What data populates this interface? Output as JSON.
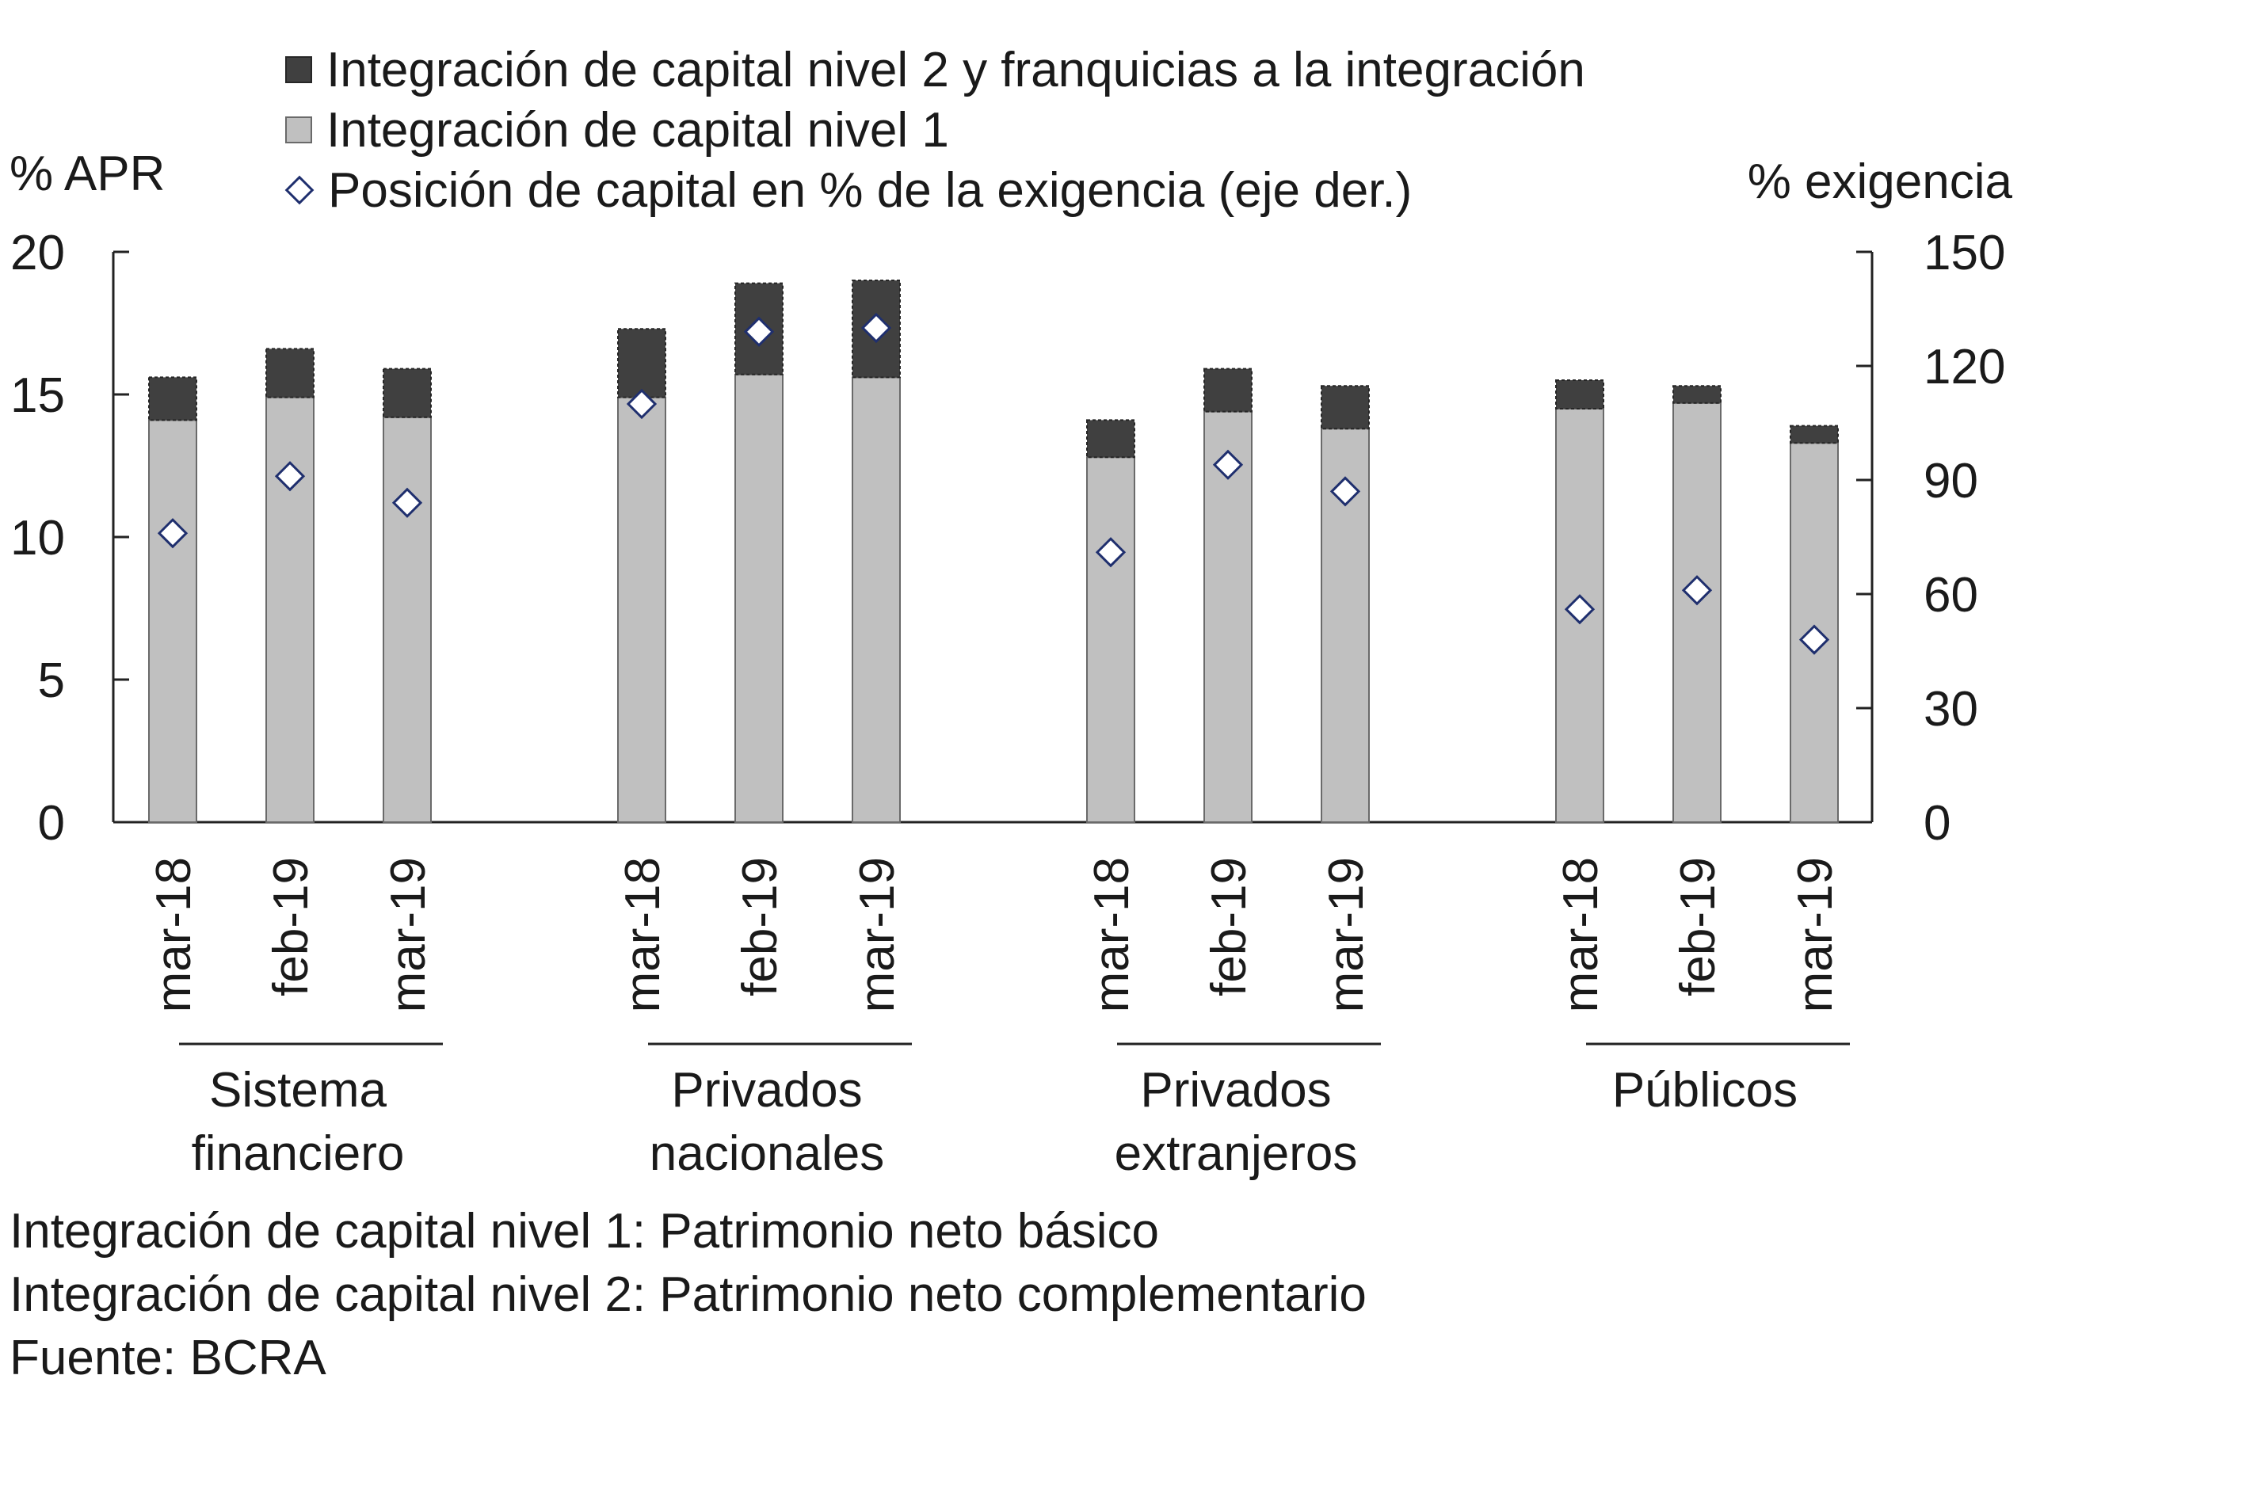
{
  "chart_data": {
    "type": "bar",
    "stacked": true,
    "y_left_label": "% APR",
    "y_right_label": "% exigencia",
    "y_left_range": [
      0,
      20
    ],
    "y_right_range": [
      0,
      150
    ],
    "y_left_ticks": [
      "0",
      "5",
      "10",
      "15",
      "20"
    ],
    "y_right_ticks": [
      "0",
      "30",
      "60",
      "90",
      "120",
      "150"
    ],
    "groups": [
      {
        "name": "Sistema financiero",
        "label_lines": [
          "Sistema",
          "financiero"
        ]
      },
      {
        "name": "Privados nacionales",
        "label_lines": [
          "Privados",
          "nacionales"
        ]
      },
      {
        "name": "Privados extranjeros",
        "label_lines": [
          "Privados",
          "extranjeros"
        ]
      },
      {
        "name": "Públicos",
        "label_lines": [
          "Públicos"
        ]
      }
    ],
    "categories": [
      "mar-18",
      "feb-19",
      "mar-19"
    ],
    "series": [
      {
        "name": "Integración de capital nivel 1",
        "axis": "left",
        "kind": "bar",
        "values": [
          [
            14.1,
            14.9,
            14.2
          ],
          [
            14.9,
            15.7,
            15.6
          ],
          [
            12.8,
            14.4,
            13.8
          ],
          [
            14.5,
            14.7,
            13.3
          ]
        ]
      },
      {
        "name": "Integración de capital nivel 2 y franquicias a la integración",
        "axis": "left",
        "kind": "bar",
        "values": [
          [
            1.5,
            1.7,
            1.7
          ],
          [
            2.4,
            3.2,
            3.4
          ],
          [
            1.3,
            1.5,
            1.5
          ],
          [
            1.0,
            0.6,
            0.6
          ]
        ]
      },
      {
        "name": "Posición de capital en % de la exigencia (eje der.)",
        "axis": "right",
        "kind": "marker",
        "values": [
          [
            76,
            91,
            84
          ],
          [
            110,
            129,
            130
          ],
          [
            71,
            94,
            87
          ],
          [
            56,
            61,
            48
          ]
        ]
      }
    ],
    "legend": [
      "Integración de capital nivel 2 y franquicias a la integración",
      "Integración de capital nivel 1",
      "Posición de capital en % de la exigencia (eje der.)"
    ],
    "colors": {
      "tier1": "#c0c0c0",
      "tier2": "#404040",
      "marker_fill": "#ffffff",
      "marker_stroke": "#1f2f6e",
      "axis": "#222222"
    }
  },
  "notes": [
    "Integración de capital nivel 1: Patrimonio neto básico",
    "Integración de capital nivel 2: Patrimonio neto complementario",
    "Fuente: BCRA"
  ]
}
